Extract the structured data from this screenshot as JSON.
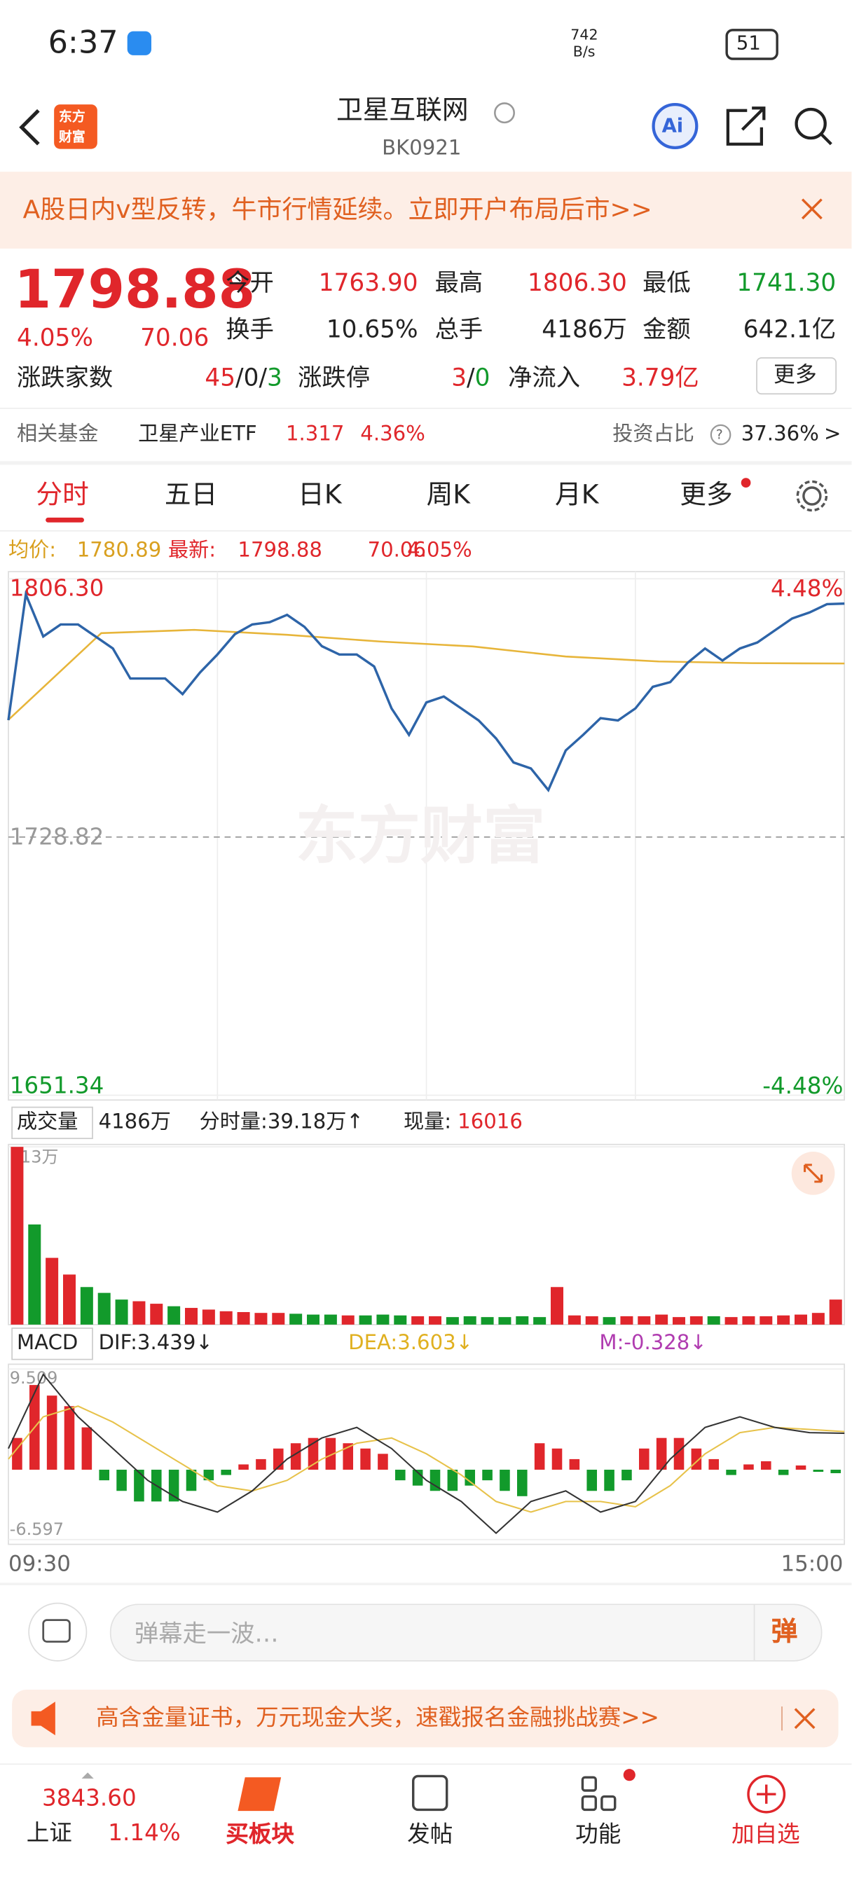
{
  "status_bar": {
    "time": "6:37",
    "net_speed": "742",
    "net_unit": "B/s",
    "battery": "51"
  },
  "nav": {
    "logo_top": "东方",
    "logo_bottom": "财富",
    "title": "卫星互联网",
    "code": "BK0921",
    "ai": "Ai"
  },
  "banner": {
    "text": "A股日内v型反转，牛市行情延续。立即开户布局后市>>"
  },
  "quote": {
    "price": "1798.88",
    "pct": "4.05%",
    "change": "70.06",
    "fields": [
      {
        "label": "今开",
        "value": "1763.90"
      },
      {
        "label": "最高",
        "value": "1806.30"
      },
      {
        "label": "最低",
        "value": "1741.30"
      },
      {
        "label": "换手",
        "value": "10.65%"
      },
      {
        "label": "总手",
        "value": "4186万"
      },
      {
        "label": "金额",
        "value": "642.1亿"
      }
    ],
    "breadth": {
      "label": "涨跌家数",
      "up": "45",
      "flat": "0",
      "down": "3",
      "sep": "/"
    },
    "limit": {
      "label": "涨跌停",
      "up": "3",
      "down": "0",
      "sep": "/"
    },
    "inflow": {
      "label": "净流入",
      "value": "3.79亿"
    },
    "more": "更多"
  },
  "fund": {
    "label": "相关基金",
    "name": "卫星产业ETF",
    "price": "1.317",
    "pct": "4.36%",
    "share_label": "投资占比",
    "help": "?",
    "share": "37.36%",
    "arrow": ">"
  },
  "tabs": [
    "分时",
    "五日",
    "日K",
    "周K",
    "月K",
    "更多"
  ],
  "avg_row": {
    "avg_label": "均价:",
    "avg": "1780.89",
    "last_label": "最新:",
    "last": "1798.88",
    "change": "70.06",
    "pct": "4.05%"
  },
  "price_chart": {
    "watermark": "东方财富",
    "ylim": [
      1651.34,
      1806.3
    ],
    "yticks": [
      {
        "value": 1806.3,
        "label": "1806.30"
      },
      1728.82,
      {
        "value": 1651.34,
        "label": "1651.34"
      }
    ],
    "pct_top": "4.48%",
    "pct_bottom": "-4.48%",
    "line_color": "#2d64a8",
    "avg_color": "#e7b53a",
    "price": [
      1763.9,
      1801.6,
      1789,
      1792.6,
      1792.6,
      1789,
      1785.4,
      1776.4,
      1776.4,
      1776.4,
      1771.7,
      1778.2,
      1783.6,
      1789.7,
      1792.6,
      1793.3,
      1795.5,
      1791.9,
      1786.1,
      1783.6,
      1783.6,
      1780,
      1767.4,
      1759.5,
      1769.2,
      1771,
      1767.4,
      1763.8,
      1758.4,
      1751.2,
      1749.4,
      1742.9,
      1754.8,
      1759.5,
      1764.5,
      1763.8,
      1767.4,
      1773.9,
      1775.3,
      1781.1,
      1785.4,
      1781.8,
      1785.4,
      1787.2,
      1790.8,
      1794.4,
      1796.2,
      1798.7,
      1798.88
    ],
    "avg": [
      1764,
      1790,
      1791,
      1789.5,
      1787.5,
      1786,
      1783,
      1781.5,
      1781,
      1780.89
    ]
  },
  "volume_row": {
    "label": "成交量",
    "total": "4186万",
    "minute": "分时量:39.18万↑",
    "now_label": "现量:",
    "now": "16016"
  },
  "volume_chart": {
    "ylim": [
      0,
      213
    ],
    "yticks": [
      {
        "value": 213,
        "label": "213万"
      }
    ],
    "up_color": "#e0262b",
    "down_color": "#129a2b",
    "values": [
      213,
      120,
      80,
      60,
      45,
      38,
      30,
      28,
      25,
      22,
      20,
      18,
      16,
      15,
      14,
      14,
      13,
      12,
      12,
      11,
      11,
      12,
      11,
      10,
      10,
      9,
      10,
      9,
      9,
      10,
      9,
      45,
      11,
      10,
      9,
      10,
      10,
      12,
      9,
      10,
      10,
      9,
      10,
      10,
      11,
      12,
      14,
      30
    ]
  },
  "macd_row": {
    "label": "MACD",
    "dif": "DIF:3.439↓",
    "dea": "DEA:3.603↓",
    "m": "M:-0.328↓"
  },
  "macd_chart": {
    "ylim": [
      -6.597,
      9.509
    ],
    "yticks": [
      9.509,
      -6.597
    ],
    "up_color": "#e0262b",
    "down_color": "#129a2b",
    "dif_color": "#333333",
    "dea_color": "#e7c24a",
    "hist": [
      3,
      8,
      7,
      6,
      4,
      -1,
      -2,
      -3,
      -3,
      -3,
      -2,
      -1,
      -0.5,
      0.5,
      1,
      2,
      2.5,
      3,
      3,
      2.5,
      2,
      1.5,
      -1,
      -1.5,
      -2,
      -2,
      -1.5,
      -1,
      -2,
      -2.5,
      2.5,
      2,
      1,
      -2,
      -2,
      -1,
      2,
      3,
      3,
      2,
      1,
      -0.5,
      0.5,
      0.8,
      -0.5,
      0.4,
      -0.2,
      -0.328
    ],
    "dif": [
      2,
      9,
      5,
      2,
      -1,
      -3,
      -4,
      -2,
      1,
      3,
      4,
      2,
      -1,
      -3,
      -6,
      -3,
      -2,
      -4,
      -3,
      1,
      4,
      5,
      4,
      3.5,
      3.439
    ],
    "dea": [
      1,
      5,
      6,
      4.5,
      2.5,
      0.5,
      -1.5,
      -2,
      -1,
      1,
      2.5,
      3,
      1.5,
      -0.5,
      -3,
      -4,
      -3,
      -3,
      -3.5,
      -1.5,
      1.5,
      3.5,
      4,
      3.8,
      3.603
    ]
  },
  "time_axis": {
    "start": "09:30",
    "end": "15:00"
  },
  "comment": {
    "placeholder": "弹幕走一波…",
    "button": "弹"
  },
  "ad": {
    "text": "高含金量证书，万元现金大奖，速戳报名金融挑战赛>>"
  },
  "bottom_nav": {
    "index_value": "3843.60",
    "index_name": "上证",
    "index_pct": "1.14%",
    "items": [
      "买板块",
      "发帖",
      "功能",
      "加自选"
    ]
  }
}
